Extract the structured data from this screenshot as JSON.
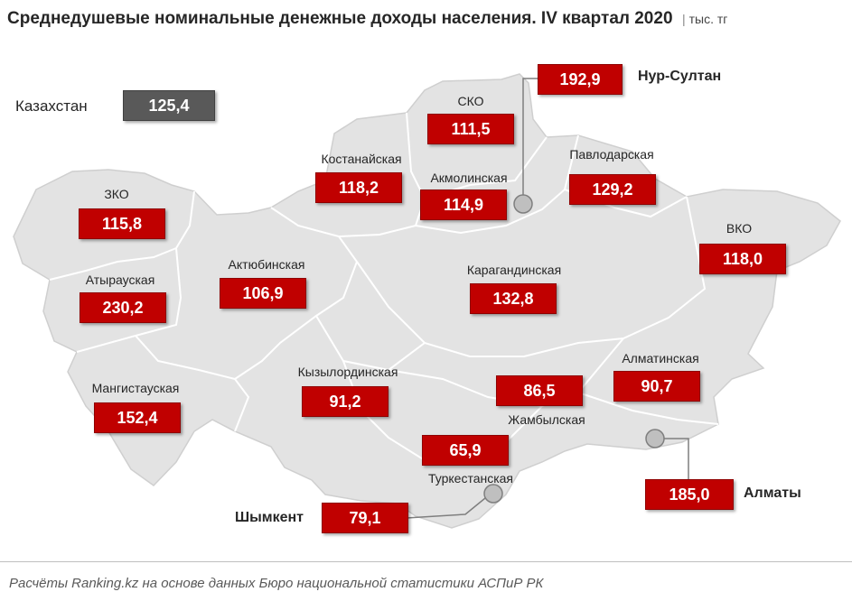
{
  "header": {
    "title": "Среднедушевые номинальные денежные доходы населения. IV квартал 2020",
    "unit": "тыс. тг"
  },
  "national": {
    "label": "Казахстан",
    "value": "125,4"
  },
  "regions": [
    {
      "name": "ЗКО",
      "value": "115,8"
    },
    {
      "name": "Атырауская",
      "value": "230,2"
    },
    {
      "name": "Мангистауская",
      "value": "152,4"
    },
    {
      "name": "Актюбинская",
      "value": "106,9"
    },
    {
      "name": "Костанайская",
      "value": "118,2"
    },
    {
      "name": "СКО",
      "value": "111,5"
    },
    {
      "name": "Акмолинская",
      "value": "114,9"
    },
    {
      "name": "Павлодарская",
      "value": "129,2"
    },
    {
      "name": "ВКО",
      "value": "118,0"
    },
    {
      "name": "Карагандинская",
      "value": "132,8"
    },
    {
      "name": "Кызылординская",
      "value": "91,2"
    },
    {
      "name": "Жамбылская",
      "value": "86,5"
    },
    {
      "name": "Алматинская",
      "value": "90,7"
    },
    {
      "name": "Туркестанская",
      "value": "65,9"
    }
  ],
  "cities": [
    {
      "name": "Нур-Султан",
      "value": "192,9"
    },
    {
      "name": "Алматы",
      "value": "185,0"
    },
    {
      "name": "Шымкент",
      "value": "79,1"
    }
  ],
  "colors": {
    "value_box": "#c00000",
    "national_box": "#595959",
    "map_fill": "#e3e3e3",
    "map_border": "#ffffff"
  },
  "footer": {
    "source": "Расчёты Ranking.kz на основе данных Бюро национальной статистики АСПиР РК"
  }
}
